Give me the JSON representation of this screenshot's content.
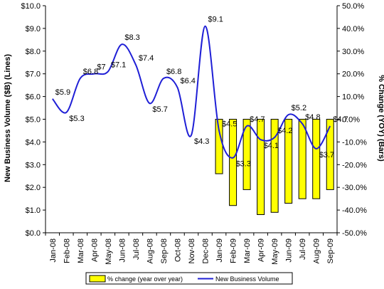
{
  "chart_data": {
    "type": "bar+line",
    "categories": [
      "Jan-08",
      "Feb-08",
      "Mar-08",
      "Apr-08",
      "May-08",
      "Jun-08",
      "Jul-08",
      "Aug-08",
      "Sep-08",
      "Oct-08",
      "Nov-08",
      "Dec-08",
      "Jan-09",
      "Feb-09",
      "Mar-09",
      "Apr-09",
      "May-09",
      "Jun-09",
      "Jul-09",
      "Aug-09",
      "Sep-09"
    ],
    "line_series": {
      "name": "New Business Volume",
      "color": "#1f1fd6",
      "values": [
        5.9,
        5.3,
        6.8,
        7.0,
        7.1,
        8.3,
        7.4,
        5.7,
        6.8,
        6.4,
        4.3,
        9.1,
        4.5,
        3.3,
        4.7,
        4.1,
        4.2,
        5.2,
        4.8,
        3.7,
        4.7
      ],
      "labels": [
        "$5.9",
        "$5.3",
        "$6.8",
        "$7",
        "$7.1",
        "$8.3",
        "$7.4",
        "$5.7",
        "$6.8",
        "$6.4",
        "$4.3",
        "$9.1",
        "$4.5",
        "$3.3",
        "$4.7",
        "$4.1",
        "$4.2",
        "$5.2",
        "$4.8",
        "$3.7",
        "$4.7"
      ]
    },
    "bar_series": {
      "name": "% change (year over year)",
      "color": "#ffff00",
      "border": "#000000",
      "categories": [
        "Jan-09",
        "Feb-09",
        "Mar-09",
        "Apr-09",
        "May-09",
        "Jun-09",
        "Jul-09",
        "Aug-09",
        "Sep-09"
      ],
      "values": [
        -24,
        -38,
        -31,
        -42,
        -41,
        -37,
        -35,
        -35,
        -31
      ]
    },
    "y_left": {
      "label": "New Business Volume ($B) (Lines)",
      "min": 0,
      "max": 10,
      "step": 1,
      "tick_labels": [
        "$0.0",
        "$1.0",
        "$2.0",
        "$3.0",
        "$4.0",
        "$5.0",
        "$6.0",
        "$7.0",
        "$8.0",
        "$9.0",
        "$10.0"
      ]
    },
    "y_right": {
      "label": "% Change (YOY) (Bars)",
      "min": -50,
      "max": 50,
      "step": 10,
      "tick_labels": [
        "-50.0%",
        "-40.0%",
        "-30.0%",
        "-20.0%",
        "-10.0%",
        "0.0%",
        "10.0%",
        "20.0%",
        "30.0%",
        "40.0%",
        "50.0%"
      ]
    },
    "legend": {
      "position": "bottom",
      "bar_label": "% change (year over year)",
      "line_label": "New Business Volume"
    },
    "grid": false
  }
}
